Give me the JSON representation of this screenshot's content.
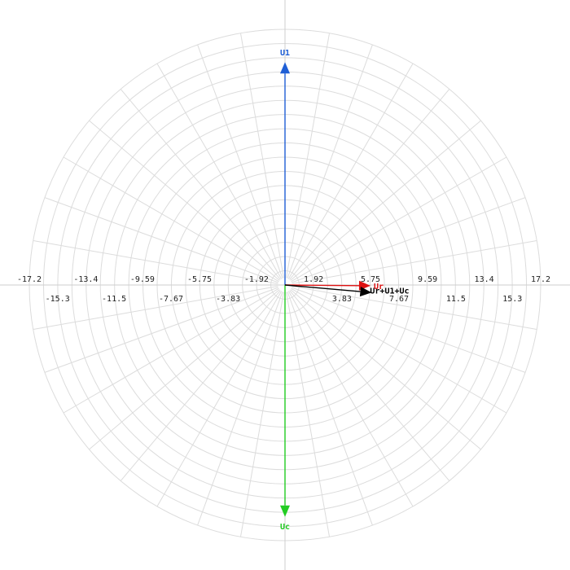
{
  "chart_data": {
    "type": "polar-phasor",
    "radial_max": 17.2,
    "rings": 18,
    "spokes_deg": 10,
    "axis_ticks_upper": [
      "-17.2",
      "-13.4",
      "-9.59",
      "-5.75",
      "-1.92",
      "1.92",
      "5.75",
      "9.59",
      "13.4",
      "17.2"
    ],
    "axis_ticks_lower": [
      "-15.3",
      "-11.5",
      "-7.67",
      "-3.83",
      "3.83",
      "7.67",
      "11.5",
      "15.3"
    ],
    "phasors": [
      {
        "name": "U1",
        "magnitude": 15.0,
        "angle_deg": 90,
        "color": "#1f5fd6"
      },
      {
        "name": "Uc",
        "magnitude": 15.6,
        "angle_deg": -90,
        "color": "#22cc22"
      },
      {
        "name": "Ur",
        "magnitude": 5.75,
        "angle_deg": -0.5,
        "color": "#dd1111"
      },
      {
        "name": "Ur+U1+Uc",
        "magnitude": 5.85,
        "angle_deg": -5,
        "color": "#000000"
      }
    ]
  }
}
